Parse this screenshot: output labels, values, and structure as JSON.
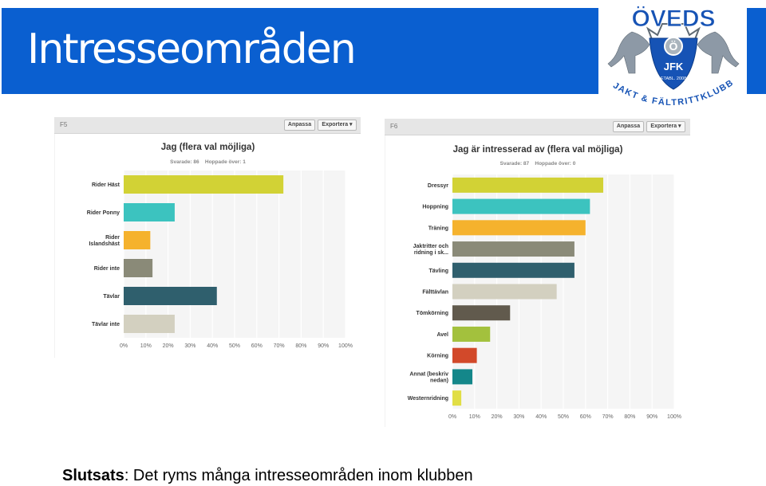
{
  "title": "Intresseområden",
  "logo": {
    "top_text": "ÖVEDS",
    "monogram": "Ö",
    "initials": "JFK",
    "established": "ETABL. 2008",
    "bottom_text": "JAKT & FÄLTRITTKLUBB"
  },
  "toolbar": {
    "customize_label": "Anpassa",
    "export_label": "Exportera ▾"
  },
  "chart_data": [
    {
      "type": "bar",
      "orientation": "horizontal",
      "panel_code": "F5",
      "title": "Jag (flera val möjliga)",
      "answered": "Svarade: 86",
      "skipped": "Hoppade över: 1",
      "categories": [
        "Rider Häst",
        "Rider Ponny",
        "Rider Islandshäst",
        "Rider inte",
        "Tävlar",
        "Tävlar inte"
      ],
      "category_lines": [
        [
          "Rider Häst"
        ],
        [
          "Rider Ponny"
        ],
        [
          "Rider",
          "Islandshäst"
        ],
        [
          "Rider inte"
        ],
        [
          "Tävlar"
        ],
        [
          "Tävlar inte"
        ]
      ],
      "values": [
        72,
        23,
        12,
        13,
        42,
        23
      ],
      "colors": [
        "#d2d235",
        "#3cc3bf",
        "#f5b22d",
        "#8a8a78",
        "#2f5f6d",
        "#d3d0c0"
      ],
      "xlim": [
        0,
        100
      ],
      "ticks": [
        "0%",
        "10%",
        "20%",
        "30%",
        "40%",
        "50%",
        "60%",
        "70%",
        "80%",
        "90%",
        "100%"
      ]
    },
    {
      "type": "bar",
      "orientation": "horizontal",
      "panel_code": "F6",
      "title": "Jag är intresserad av (flera val möjliga)",
      "answered": "Svarade: 87",
      "skipped": "Hoppade över: 0",
      "categories": [
        "Dressyr",
        "Hoppning",
        "Träning",
        "Jaktritter och ridning i sk...",
        "Tävling",
        "Fälttävlan",
        "Tömkörning",
        "Avel",
        "Körning",
        "Annat (beskriv nedan)",
        "Westernridning"
      ],
      "category_lines": [
        [
          "Dressyr"
        ],
        [
          "Hoppning"
        ],
        [
          "Träning"
        ],
        [
          "Jaktritter och",
          "ridning i sk..."
        ],
        [
          "Tävling"
        ],
        [
          "Fälttävlan"
        ],
        [
          "Tömkörning"
        ],
        [
          "Avel"
        ],
        [
          "Körning"
        ],
        [
          "Annat (beskriv",
          "nedan)"
        ],
        [
          "Westernridning"
        ]
      ],
      "values": [
        68,
        62,
        60,
        55,
        55,
        47,
        26,
        17,
        11,
        9,
        4
      ],
      "colors": [
        "#d2d235",
        "#3cc3bf",
        "#f5b22d",
        "#8a8a78",
        "#2f5f6d",
        "#d3d0c0",
        "#615a4d",
        "#a3c13d",
        "#d2492a",
        "#14878a",
        "#e1de45"
      ],
      "xlim": [
        0,
        100
      ],
      "ticks": [
        "0%",
        "10%",
        "20%",
        "30%",
        "40%",
        "50%",
        "60%",
        "70%",
        "80%",
        "90%",
        "100%"
      ]
    }
  ],
  "conclusion": {
    "label": "Slutsats",
    "text": ": Det ryms många intresseområden inom klubben"
  }
}
